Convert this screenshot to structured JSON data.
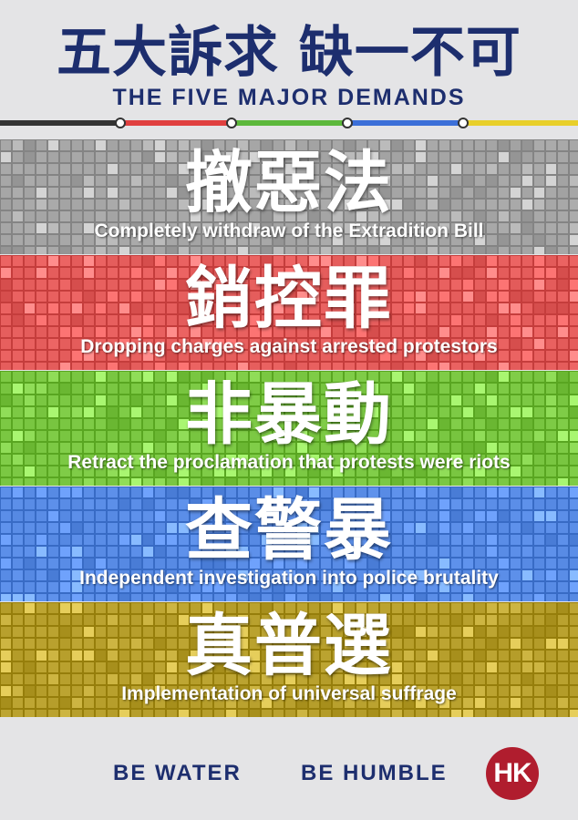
{
  "title": {
    "chinese": "五大訴求 缺一不可",
    "english": "THE FIVE MAJOR DEMANDS"
  },
  "line_colors": [
    "#333333",
    "#e0403f",
    "#5cb83b",
    "#3b6fd8",
    "#e8cf2a"
  ],
  "demands": [
    {
      "chinese": "撤惡法",
      "english": "Completely withdraw of the Extradition Bill",
      "color": "#a7a7a7"
    },
    {
      "chinese": "銷控罪",
      "english": "Dropping charges against arrested protestors",
      "color": "#e8605f"
    },
    {
      "chinese": "非暴動",
      "english": "Retract the proclamation that protests were riots",
      "color": "#7cc944"
    },
    {
      "chinese": "查警暴",
      "english": "Independent investigation into police brutality",
      "color": "#5b8ee8"
    },
    {
      "chinese": "真普選",
      "english": "Implementation of universal suffrage",
      "color": "#b9a12e"
    }
  ],
  "footer": {
    "slogan_1": "BE WATER",
    "slogan_2": "BE HUMBLE",
    "logo_text": "HK"
  }
}
